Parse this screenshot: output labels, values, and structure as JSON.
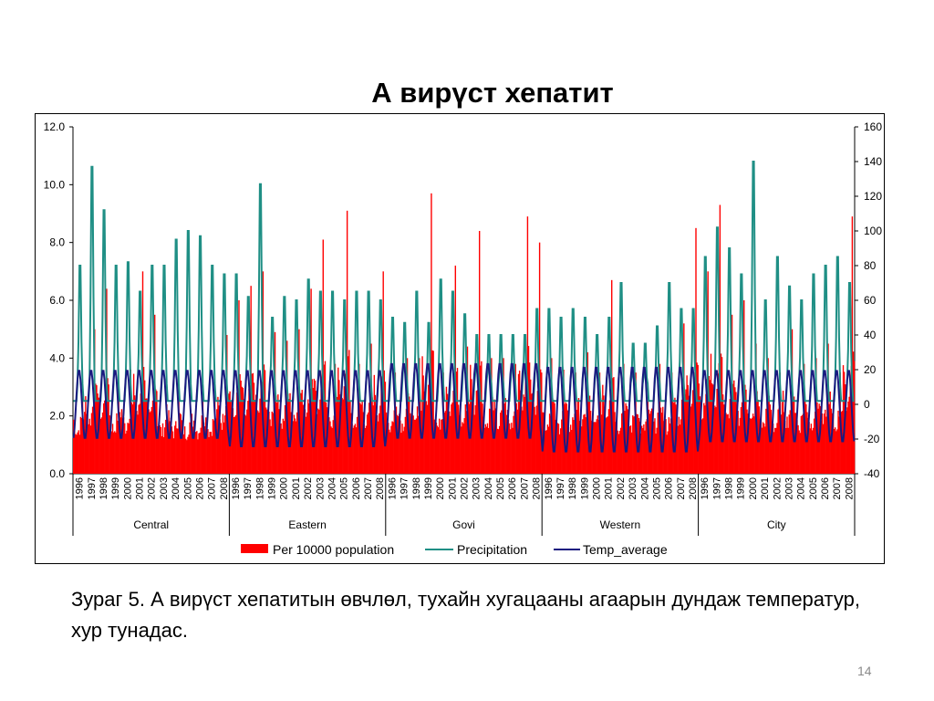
{
  "slide": {
    "title": "А вирүст хепатит",
    "caption": "Зураг 5. А вирүст хепатитын өвчлөл, тухайн хугацааны агаарын дундаж температур, хур тунадас.",
    "page_number": "14"
  },
  "chart_data": {
    "type": "bar",
    "title": "",
    "xlabel": "",
    "ylabel": "",
    "ylim": [
      0,
      12
    ],
    "y2lim": [
      -40,
      160
    ],
    "y_ticks": [
      "0.0",
      "2.0",
      "4.0",
      "6.0",
      "8.0",
      "10.0",
      "12.0"
    ],
    "y2_ticks": [
      "-40",
      "-20",
      "0",
      "20",
      "40",
      "60",
      "80",
      "100",
      "120",
      "140",
      "160"
    ],
    "groups": [
      "Central",
      "Eastern",
      "Govi",
      "Western",
      "City"
    ],
    "years": [
      "1996",
      "1997",
      "1998",
      "1999",
      "2000",
      "2001",
      "2002",
      "2003",
      "2004",
      "2005",
      "2006",
      "2007",
      "2008"
    ],
    "legend_position": "bottom",
    "grid": false,
    "colors": {
      "bars": "#ff0000",
      "precipitation": "#1f8f85",
      "temperature": "#1a1a80"
    },
    "series": [
      {
        "name": "Per 10000 population",
        "type": "bar",
        "axis": "left",
        "annual_peaks": {
          "Central": [
            2.6,
            5.0,
            6.4,
            3.0,
            3.6,
            7.0,
            5.5,
            2.4,
            2.5,
            2.2,
            2.5,
            2.6,
            4.8
          ],
          "Eastern": [
            6.0,
            6.5,
            7.0,
            4.9,
            4.6,
            5.0,
            6.4,
            8.1,
            3.8,
            9.1,
            3.8,
            4.5,
            7.0
          ],
          "Govi": [
            3.5,
            4.0,
            4.0,
            9.7,
            3.5,
            7.2,
            4.4,
            8.4,
            4.0,
            4.0,
            3.8,
            8.9,
            8.0
          ],
          "Western": [
            4.0,
            3.6,
            3.5,
            4.2,
            3.5,
            6.7,
            3.8,
            3.5,
            2.5,
            3.8,
            3.5,
            5.2,
            8.5
          ],
          "City": [
            7.0,
            9.3,
            5.5,
            6.0,
            4.5,
            4.0,
            3.5,
            5.0,
            3.8,
            4.0,
            4.5,
            3.5,
            8.9
          ]
        }
      },
      {
        "name": "Precipitation",
        "type": "line",
        "axis": "right",
        "annual_peaks": {
          "Central": [
            80,
            137,
            112,
            80,
            82,
            65,
            80,
            80,
            95,
            100,
            97,
            80,
            75
          ],
          "Eastern": [
            75,
            62,
            127,
            50,
            62,
            60,
            72,
            65,
            65,
            60,
            65,
            65,
            60
          ],
          "Govi": [
            50,
            47,
            65,
            47,
            72,
            65,
            52,
            40,
            40,
            40,
            40,
            40,
            55
          ],
          "Western": [
            55,
            50,
            55,
            50,
            40,
            50,
            70,
            35,
            35,
            45,
            70,
            55,
            55
          ],
          "City": [
            85,
            102,
            90,
            75,
            140,
            60,
            85,
            68,
            60,
            75,
            80,
            85,
            70
          ]
        }
      },
      {
        "name": "Temp_average",
        "type": "line",
        "axis": "right",
        "summer_highs": [
          20,
          20,
          24,
          22,
          20
        ],
        "winter_lows": [
          -20,
          -25,
          -20,
          -28,
          -22
        ]
      }
    ]
  }
}
